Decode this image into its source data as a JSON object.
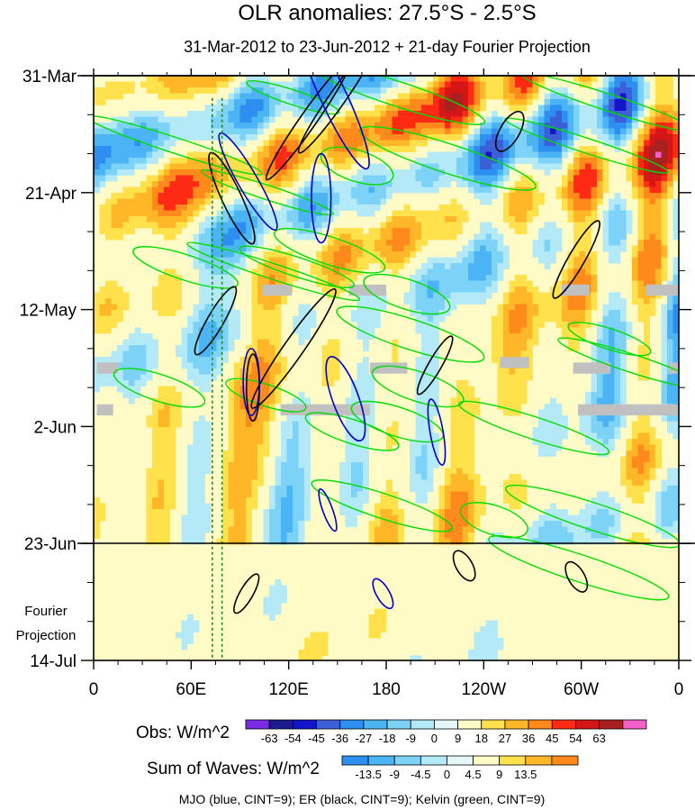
{
  "title": "OLR anomalies: 27.5°S - 2.5°S",
  "subtitle": "31-Mar-2012 to 23-Jun-2012 + 21-day Fourier Projection",
  "projection_label": [
    "Fourier",
    "Projection"
  ],
  "colorbars": {
    "obs": {
      "label": "Obs: W/m^2",
      "ticks": [
        "-63",
        "-54",
        "-45",
        "-36",
        "-27",
        "-18",
        "-9",
        "0",
        "9",
        "18",
        "27",
        "36",
        "45",
        "54",
        "63"
      ],
      "colors": [
        "#7b2be2",
        "#1c1c8e",
        "#1414c8",
        "#3c5fd8",
        "#2f8ff0",
        "#4ab4f5",
        "#7dd2f8",
        "#b4eaf8",
        "#e4f8fa",
        "#fffbc6",
        "#ffe14c",
        "#ffb627",
        "#ff8a1c",
        "#ff2a14",
        "#d41616",
        "#a82020",
        "#f060c8"
      ]
    },
    "waves": {
      "label": "Sum of Waves: W/m^2",
      "ticks": [
        "-13.5",
        "-9",
        "-4.5",
        "0",
        "4.5",
        "9",
        "13.5"
      ],
      "colors": [
        "#2f8ff0",
        "#4ab4f5",
        "#7dd2f8",
        "#b4eaf8",
        "#e4f8fa",
        "#fffbc6",
        "#ffe14c",
        "#ffb627",
        "#ff8a1c"
      ]
    }
  },
  "footer_note": "MJO (blue, CINT=9); ER (black, CINT=9); Kelvin (green, CINT=9)",
  "chart_data": {
    "type": "heatmap",
    "title": "OLR anomalies: 27.5°S - 2.5°S",
    "subtitle": "31-Mar-2012 to 23-Jun-2012 + 21-day Fourier Projection",
    "x_ticks": [
      "0",
      "60E",
      "120E",
      "180",
      "120W",
      "60W",
      "0"
    ],
    "x_tick_lon": [
      0,
      60,
      120,
      180,
      240,
      300,
      360
    ],
    "xlim": [
      0,
      360
    ],
    "y_ticks": [
      "31-Mar",
      "21-Apr",
      "12-May",
      "2-Jun",
      "23-Jun",
      "14-Jul"
    ],
    "y_tick_day": [
      0,
      21,
      42,
      63,
      84,
      105
    ],
    "ylim": [
      0,
      105
    ],
    "y_direction": "time increases downward",
    "observation_end_day": 84,
    "mjo_reference_lon": [
      73,
      79
    ],
    "overlays": [
      {
        "name": "MJO",
        "color": "#0000cc"
      },
      {
        "name": "ER",
        "color": "#000000"
      },
      {
        "name": "Kelvin",
        "color": "#00dd00"
      }
    ],
    "missing_data": [
      {
        "lon": [
          104,
          122
        ],
        "days": [
          37.5,
          39.5
        ]
      },
      {
        "lon": [
          157,
          180
        ],
        "days": [
          37.5,
          39.5
        ]
      },
      {
        "lon": [
          288,
          305
        ],
        "days": [
          37.5,
          39.5
        ]
      },
      {
        "lon": [
          340,
          360
        ],
        "days": [
          37.5,
          39.5
        ]
      },
      {
        "lon": [
          2,
          15
        ],
        "days": [
          51.5,
          53.5
        ]
      },
      {
        "lon": [
          170,
          193
        ],
        "days": [
          51.5,
          53.5
        ]
      },
      {
        "lon": [
          250,
          268
        ],
        "days": [
          50.5,
          52.5
        ]
      },
      {
        "lon": [
          295,
          318
        ],
        "days": [
          51.5,
          53.5
        ]
      },
      {
        "lon": [
          354,
          360
        ],
        "days": [
          51.5,
          53.5
        ]
      },
      {
        "lon": [
          2,
          12
        ],
        "days": [
          59,
          61
        ]
      },
      {
        "lon": [
          115,
          170
        ],
        "days": [
          59,
          61
        ]
      },
      {
        "lon": [
          298,
          360
        ],
        "days": [
          59,
          61
        ]
      }
    ],
    "obs_levels": [
      -63,
      -54,
      -45,
      -36,
      -27,
      -18,
      -9,
      0,
      9,
      18,
      27,
      36,
      45,
      54,
      63
    ],
    "wave_levels": [
      -13.5,
      -9,
      -4.5,
      0,
      4.5,
      9,
      13.5
    ]
  }
}
